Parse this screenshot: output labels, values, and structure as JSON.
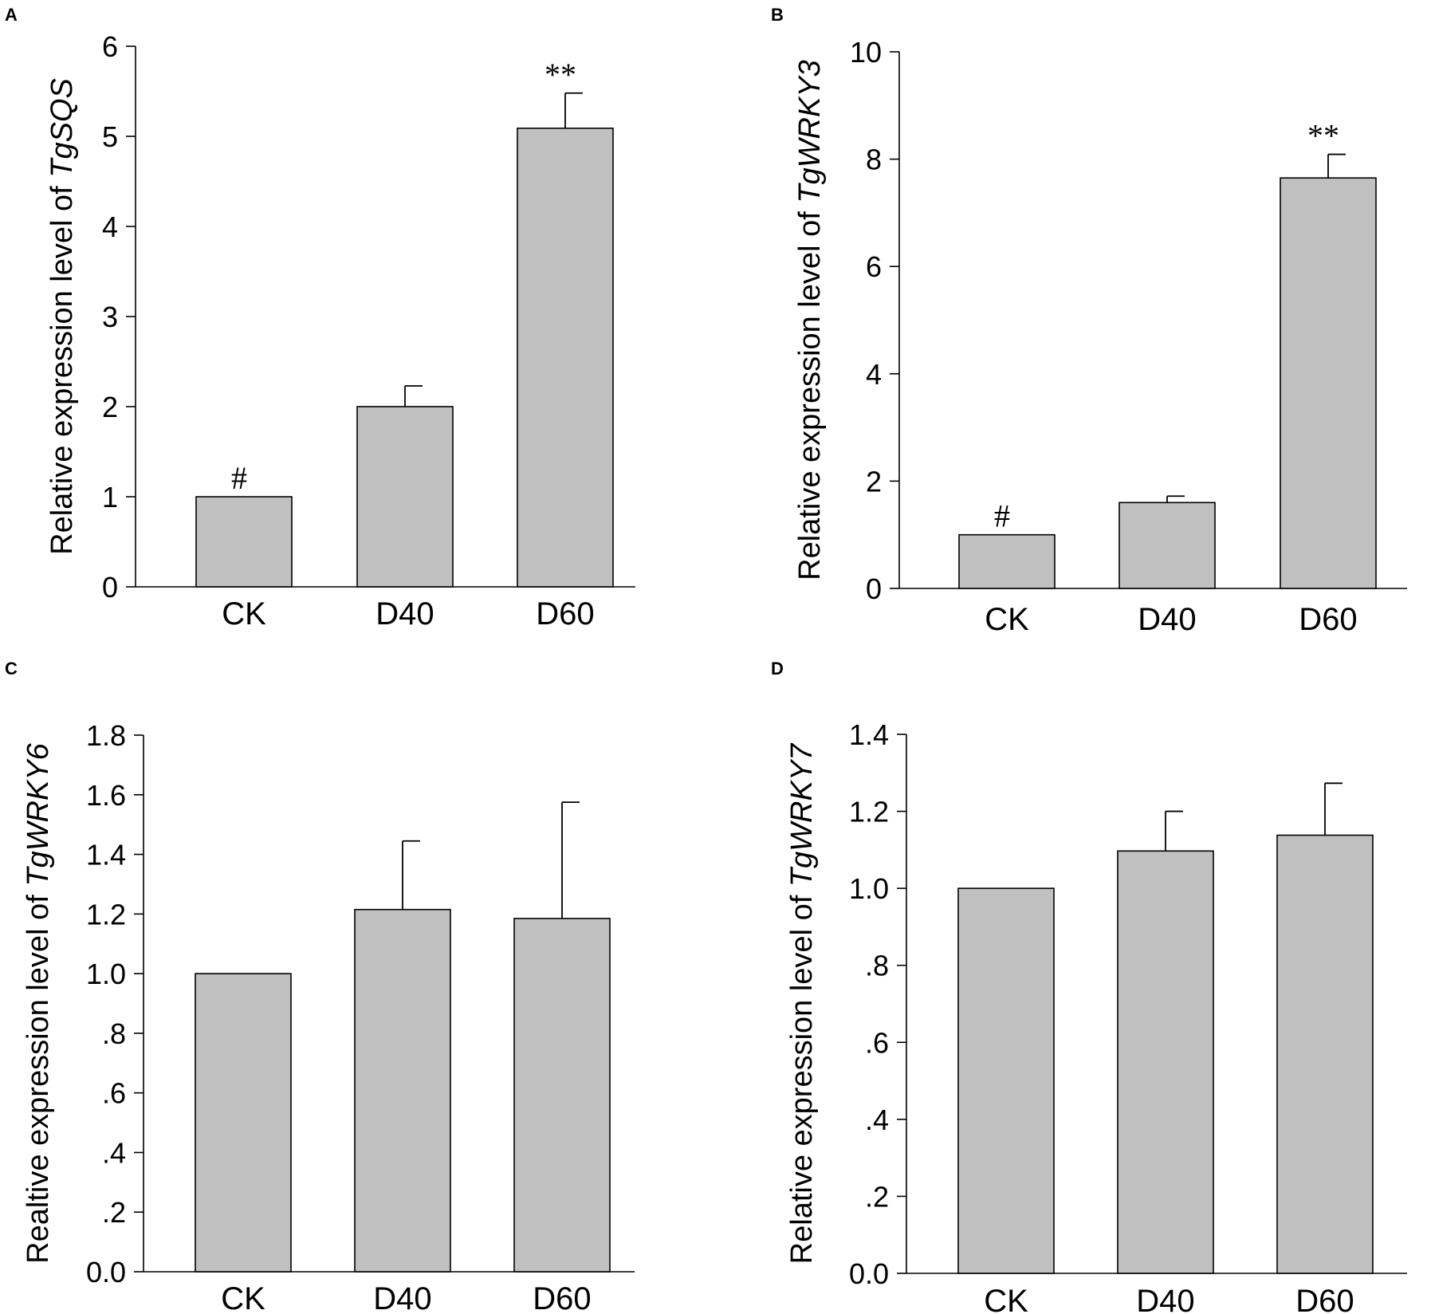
{
  "colors": {
    "bar_fill": "#c0c0c0",
    "axis": "#000000",
    "background": "#ffffff"
  },
  "chart_data": [
    {
      "type": "bar",
      "panel": "A",
      "categories": [
        "CK",
        "D40",
        "D60"
      ],
      "values": [
        1.0,
        2.0,
        5.09
      ],
      "errors": [
        0.0,
        0.23,
        0.39
      ],
      "annotations": [
        "#",
        "",
        "**"
      ],
      "ylabel_prefix": "Relative expression level of ",
      "ylabel_gene": "TgSQS",
      "ylim": [
        0,
        6
      ],
      "yticks": [
        0,
        1,
        2,
        3,
        4,
        5,
        6
      ],
      "ytick_labels": [
        "0",
        "1",
        "2",
        "3",
        "4",
        "5",
        "6"
      ]
    },
    {
      "type": "bar",
      "panel": "B",
      "categories": [
        "CK",
        "D40",
        "D60"
      ],
      "values": [
        1.0,
        1.6,
        7.65
      ],
      "errors": [
        0.0,
        0.12,
        0.44
      ],
      "annotations": [
        "#",
        "",
        "**"
      ],
      "ylabel_prefix": "Relative expression level of ",
      "ylabel_gene": "TgWRKY3",
      "ylim": [
        0,
        10
      ],
      "yticks": [
        0,
        2,
        4,
        6,
        8,
        10
      ],
      "ytick_labels": [
        "0",
        "2",
        "4",
        "6",
        "8",
        "10"
      ]
    },
    {
      "type": "bar",
      "panel": "C",
      "categories": [
        "CK",
        "D40",
        "D60"
      ],
      "values": [
        1.0,
        1.215,
        1.185
      ],
      "errors": [
        0.0,
        0.23,
        0.39
      ],
      "annotations": [
        "",
        "",
        ""
      ],
      "ylabel_prefix": "Realtive expression level of ",
      "ylabel_gene": "TgWRKY6",
      "ylim": [
        0,
        1.8
      ],
      "yticks": [
        0,
        0.2,
        0.4,
        0.6,
        0.8,
        1.0,
        1.2,
        1.4,
        1.6,
        1.8
      ],
      "ytick_labels": [
        "0.0",
        ".2",
        ".4",
        ".6",
        ".8",
        "1.0",
        "1.2",
        "1.4",
        "1.6",
        "1.8"
      ]
    },
    {
      "type": "bar",
      "panel": "D",
      "categories": [
        "CK",
        "D40",
        "D60"
      ],
      "values": [
        1.0,
        1.097,
        1.138
      ],
      "errors": [
        0.0,
        0.103,
        0.135
      ],
      "annotations": [
        "",
        "",
        ""
      ],
      "ylabel_prefix": "Relative expression level of ",
      "ylabel_gene": "TgWRKY7",
      "ylim": [
        0,
        1.4
      ],
      "yticks": [
        0,
        0.2,
        0.4,
        0.6,
        0.8,
        1.0,
        1.2,
        1.4
      ],
      "ytick_labels": [
        "0.0",
        ".2",
        ".4",
        ".6",
        ".8",
        "1.0",
        "1.2",
        "1.4"
      ]
    }
  ]
}
